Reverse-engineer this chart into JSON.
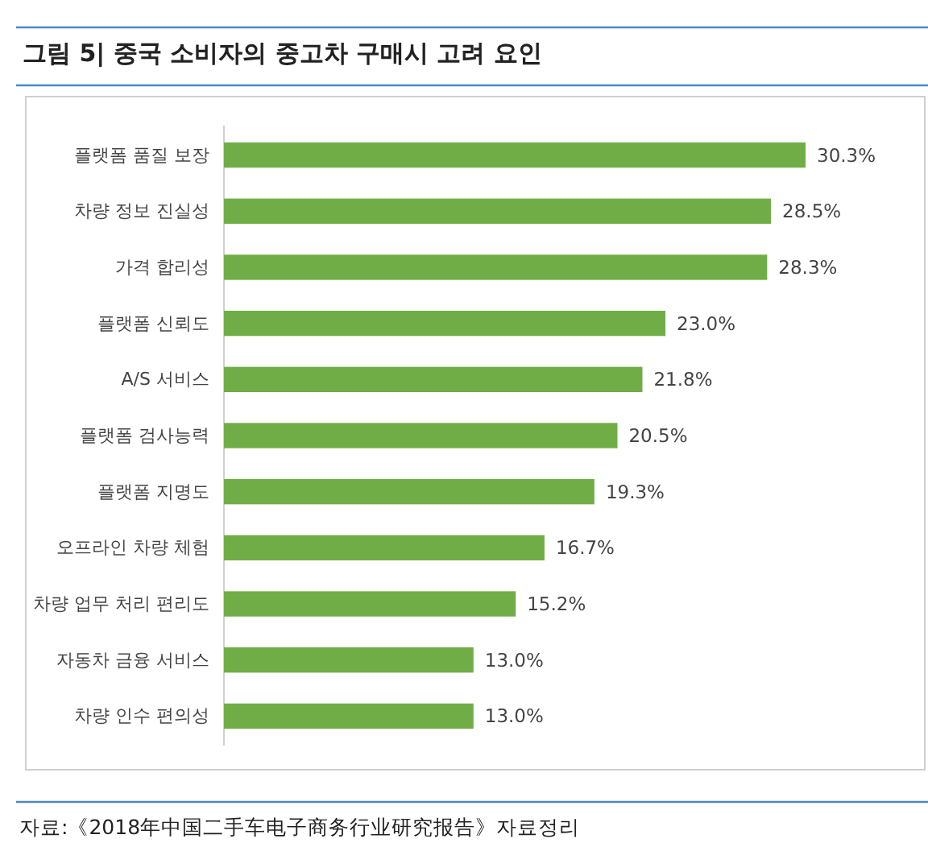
{
  "chart_data": {
    "type": "bar",
    "orientation": "horizontal",
    "title": "그림 5| 중국 소비자의 중고차 구매시 고려 요인",
    "categories": [
      "플랫폼 품질 보장",
      "차량 정보 진실성",
      "가격 합리성",
      "플랫폼 신뢰도",
      "A/S 서비스",
      "플랫폼 검사능력",
      "플랫폼 지명도",
      "오프라인 차량 체험",
      "차량 업무 처리 편리도",
      "자동차 금융 서비스",
      "차량 인수 편의성"
    ],
    "values": [
      30.3,
      28.5,
      28.3,
      23.0,
      21.8,
      20.5,
      19.3,
      16.7,
      15.2,
      13.0,
      13.0
    ],
    "value_labels": [
      "30.3%",
      "28.5%",
      "28.3%",
      "23.0%",
      "21.8%",
      "20.5%",
      "19.3%",
      "16.7%",
      "15.2%",
      "13.0%",
      "13.0%"
    ],
    "color": "#70ad47",
    "annotations": [
      "자료:《2018年中国二手车电子商务行业研究报告》자료정리"
    ]
  }
}
